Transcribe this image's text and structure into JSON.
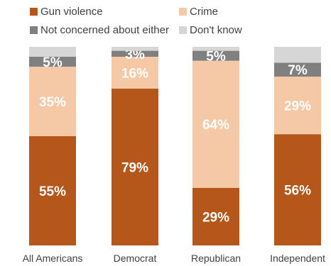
{
  "chart_data": {
    "type": "bar",
    "stacked": true,
    "categories": [
      "All Americans",
      "Democrat",
      "Republican",
      "Independent"
    ],
    "series": [
      {
        "name": "Gun violence",
        "values": [
          55,
          79,
          29,
          56
        ],
        "color": "#b5561a",
        "labels": [
          "55%",
          "79%",
          "29%",
          "56%"
        ]
      },
      {
        "name": "Crime",
        "values": [
          35,
          16,
          64,
          29
        ],
        "color": "#f5c8a6",
        "labels": [
          "35%",
          "16%",
          "64%",
          "29%"
        ]
      },
      {
        "name": "Not concerned about either",
        "values": [
          5,
          3,
          5,
          7
        ],
        "color": "#808080",
        "labels": [
          "5%",
          "3%",
          "5%",
          "7%"
        ]
      },
      {
        "name": "Don't know",
        "values": [
          5,
          2,
          2,
          8
        ],
        "color": "#d6d6d6",
        "labels": [
          "",
          "",
          "",
          ""
        ]
      }
    ],
    "ylim": [
      0,
      100
    ],
    "legend_position": "top",
    "grid": false
  }
}
